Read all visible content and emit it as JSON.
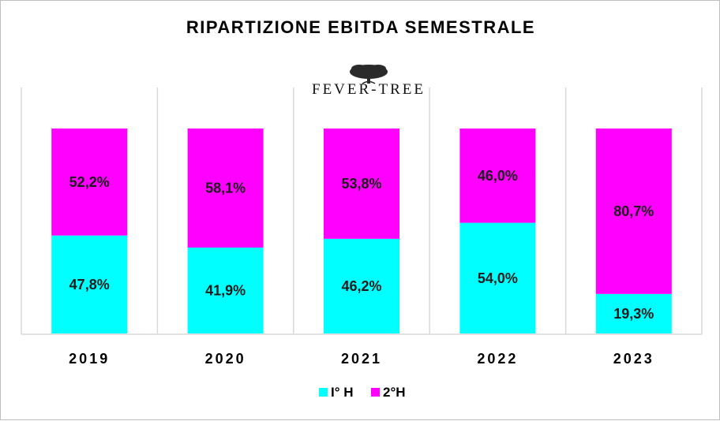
{
  "chart_data": {
    "type": "bar",
    "stacked": true,
    "title": "RIPARTIZIONE EBITDA SEMESTRALE",
    "logo_text": "FEVER-TREE",
    "categories": [
      "2019",
      "2020",
      "2021",
      "2022",
      "2023"
    ],
    "series": [
      {
        "name": "I° H",
        "color": "#00ffff",
        "values": [
          47.8,
          41.9,
          46.2,
          54.0,
          19.3
        ]
      },
      {
        "name": "2°H",
        "color": "#ff00ff",
        "values": [
          52.2,
          58.1,
          53.8,
          46.0,
          80.7
        ]
      }
    ],
    "value_labels": [
      [
        "47,8%",
        "41,9%",
        "46,2%",
        "54,0%",
        "19,3%"
      ],
      [
        "52,2%",
        "58,1%",
        "53,8%",
        "46,0%",
        "80,7%"
      ]
    ],
    "ylim": [
      0,
      100
    ],
    "grid": false,
    "legend_position": "bottom"
  }
}
